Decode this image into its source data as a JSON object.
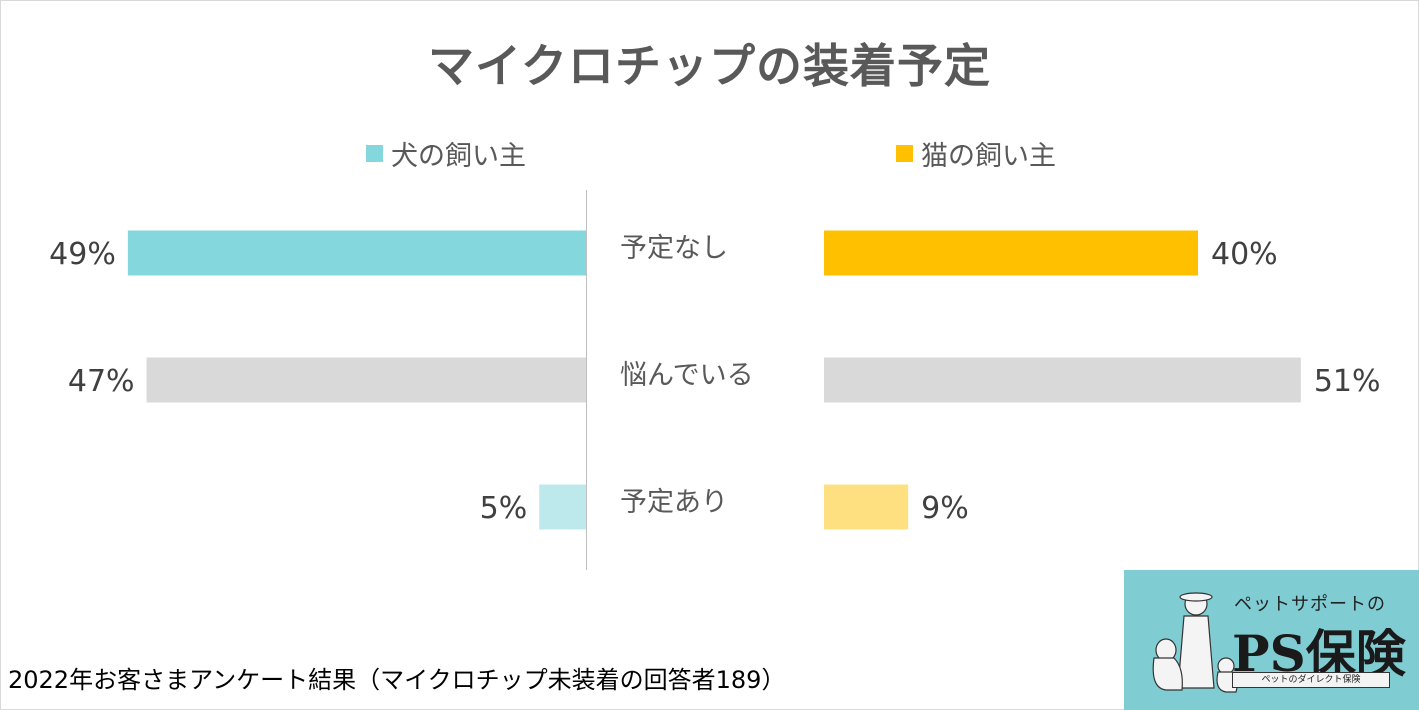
{
  "title": "マイクロチップの装着予定",
  "legend": {
    "dog": "犬の飼い主",
    "cat": "猫の飼い主"
  },
  "footer": "2022年お客さまアンケート結果（マイクロチップ未装着の回答者189）",
  "logo": {
    "sub": "ペットサポートの",
    "main": "PS保険",
    "tag": "ペットのダイレクト保険"
  },
  "colors": {
    "dog_accent": "#83d7dd",
    "cat_accent": "#ffc000",
    "neutral": "#d9d9d9",
    "dog_light": "#bde9ec",
    "cat_light": "#ffe080"
  },
  "chart_data": {
    "type": "bar",
    "categories": [
      "予定なし",
      "悩んでいる",
      "予定あり"
    ],
    "series": [
      {
        "name": "犬の飼い主",
        "values": [
          49,
          47,
          5
        ],
        "labels": [
          "49%",
          "47%",
          "5%"
        ]
      },
      {
        "name": "猫の飼い主",
        "values": [
          40,
          51,
          9
        ],
        "labels": [
          "40%",
          "51%",
          "9%"
        ]
      }
    ],
    "unit": "%",
    "legend_position": "top",
    "grid": false
  }
}
